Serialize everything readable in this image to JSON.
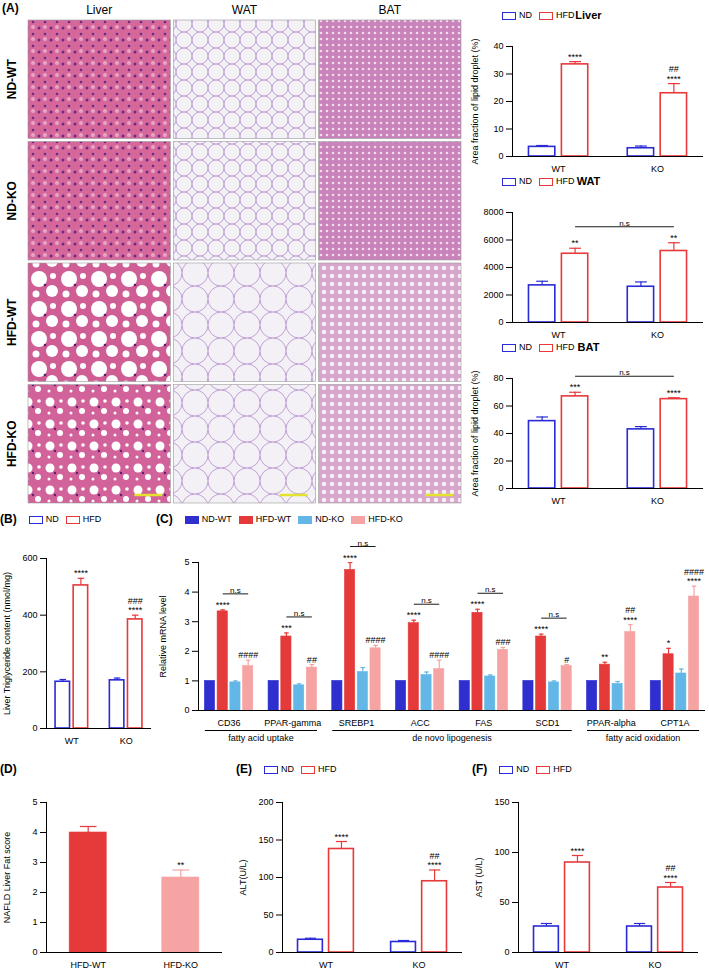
{
  "image_grid": {
    "panel": "(A)",
    "columns": [
      "Liver",
      "WAT",
      "BAT"
    ],
    "rows": [
      "ND-WT",
      "ND-KO",
      "HFD-WT",
      "HFD-KO"
    ]
  },
  "chart_data": [
    {
      "type": "bar",
      "title": "Liver",
      "ylabel": "Area fraction of lipid droplet (%)",
      "categories": [
        "WT",
        "KO"
      ],
      "ylim": [
        0,
        40
      ],
      "yticks": [
        0,
        10,
        20,
        30,
        40
      ],
      "legend": "top-left",
      "series": [
        {
          "name": "ND",
          "color": "#2a2ad6",
          "values": [
            3.5,
            3.0
          ],
          "errors": [
            0.5,
            0.8
          ],
          "annotations": [
            [],
            []
          ]
        },
        {
          "name": "HFD",
          "color": "#e8383a",
          "values": [
            33.5,
            23.0
          ],
          "errors": [
            1.0,
            3.5
          ],
          "annotations": [
            [
              "****"
            ],
            [
              "##",
              "****"
            ]
          ]
        }
      ]
    },
    {
      "type": "bar",
      "title": "WAT",
      "categories": [
        "WT",
        "KO"
      ],
      "ylim": [
        0,
        8000
      ],
      "yticks": [
        0,
        2000,
        4000,
        6000,
        8000
      ],
      "legend": "top-left",
      "series": [
        {
          "name": "ND",
          "color": "#2a2ad6",
          "values": [
            2700,
            2600
          ],
          "errors": [
            300,
            350
          ],
          "annotations": [
            [],
            []
          ]
        },
        {
          "name": "HFD",
          "color": "#e8383a",
          "values": [
            5000,
            5200
          ],
          "errors": [
            400,
            600
          ],
          "annotations": [
            [
              "**"
            ],
            [
              "**"
            ]
          ]
        }
      ],
      "brackets": [
        {
          "label": "n.s",
          "from": {
            "category": "WT",
            "series": "HFD"
          },
          "to": {
            "category": "KO",
            "series": "HFD"
          }
        }
      ]
    },
    {
      "type": "bar",
      "title": "BAT",
      "ylabel": "Area fraction of lipid droplet (%)",
      "categories": [
        "WT",
        "KO"
      ],
      "ylim": [
        0,
        80
      ],
      "yticks": [
        0,
        20,
        40,
        60,
        80
      ],
      "legend": "top-left",
      "series": [
        {
          "name": "ND",
          "color": "#2a2ad6",
          "values": [
            49,
            43
          ],
          "errors": [
            3,
            2
          ],
          "annotations": [
            [],
            []
          ]
        },
        {
          "name": "HFD",
          "color": "#e8383a",
          "values": [
            67,
            65
          ],
          "errors": [
            3,
            1
          ],
          "annotations": [
            [
              "***"
            ],
            [
              "****"
            ]
          ]
        }
      ],
      "brackets": [
        {
          "label": "n.s",
          "from": {
            "category": "WT",
            "series": "HFD"
          },
          "to": {
            "category": "KO",
            "series": "HFD"
          }
        }
      ]
    },
    {
      "type": "bar",
      "panel": "(B)",
      "ylabel": "Liver Triglyceride content (nmol/mg)",
      "categories": [
        "WT",
        "KO"
      ],
      "ylim": [
        0,
        600
      ],
      "yticks": [
        0,
        200,
        400,
        600
      ],
      "legend": "top-left",
      "series": [
        {
          "name": "ND",
          "color": "#2a2ad6",
          "values": [
            165,
            170
          ],
          "errors": [
            8,
            8
          ],
          "annotations": [
            [],
            []
          ]
        },
        {
          "name": "HFD",
          "color": "#e8383a",
          "values": [
            505,
            385
          ],
          "errors": [
            25,
            15
          ],
          "annotations": [
            [
              "****"
            ],
            [
              "###",
              "****"
            ]
          ]
        }
      ]
    },
    {
      "type": "bar",
      "panel": "(C)",
      "ylabel": "Relative mRNA level",
      "categories": [
        "CD36",
        "PPAR-gamma",
        "SREBP1",
        "ACC",
        "FAS",
        "SCD1",
        "PPAR-alpha",
        "CPT1A"
      ],
      "ylim": [
        0,
        5
      ],
      "yticks": [
        0,
        1,
        2,
        3,
        4,
        5
      ],
      "legend": "top",
      "series": [
        {
          "name": "ND-WT",
          "color": "#2f2fd0",
          "values": [
            1,
            1,
            1,
            1,
            1,
            1,
            1,
            1
          ],
          "errors": [
            0,
            0,
            0,
            0,
            0,
            0,
            0,
            0
          ],
          "annotations": [
            [],
            [],
            [],
            [],
            [],
            [],
            [],
            []
          ]
        },
        {
          "name": "HFD-WT",
          "color": "#e53a3a",
          "values": [
            3.35,
            2.5,
            4.75,
            2.95,
            3.3,
            2.5,
            1.55,
            1.9
          ],
          "errors": [
            0.05,
            0.12,
            0.25,
            0.1,
            0.12,
            0.08,
            0.08,
            0.2
          ],
          "annotations": [
            [
              "****"
            ],
            [
              "***"
            ],
            [
              "****"
            ],
            [
              "****"
            ],
            [
              "****"
            ],
            [
              "****"
            ],
            [
              "**"
            ],
            [
              "*"
            ]
          ]
        },
        {
          "name": "ND-KO",
          "color": "#63b7e6",
          "values": [
            0.95,
            0.85,
            1.3,
            1.2,
            1.15,
            0.95,
            0.9,
            1.25
          ],
          "errors": [
            0.05,
            0.05,
            0.15,
            0.1,
            0.05,
            0.05,
            0.08,
            0.15
          ],
          "annotations": [
            [],
            [],
            [],
            [],
            [],
            [],
            [],
            []
          ]
        },
        {
          "name": "HFD-KO",
          "color": "#f5a3a3",
          "values": [
            1.5,
            1.45,
            2.1,
            1.4,
            2.05,
            1.5,
            2.65,
            3.85
          ],
          "errors": [
            0.2,
            0.1,
            0.1,
            0.3,
            0.08,
            0.05,
            0.25,
            0.35
          ],
          "annotations": [
            [
              "####"
            ],
            [
              "##"
            ],
            [
              "####"
            ],
            [
              "####"
            ],
            [
              "###"
            ],
            [
              "#"
            ],
            [
              "##",
              "****"
            ],
            [
              "####",
              "****"
            ]
          ]
        }
      ],
      "brackets": [
        {
          "label": "n.s",
          "from": {
            "category": "CD36",
            "series": "HFD-WT"
          },
          "to": {
            "category": "CD36",
            "series": "HFD-KO"
          }
        },
        {
          "label": "n.s",
          "from": {
            "category": "PPAR-gamma",
            "series": "HFD-WT"
          },
          "to": {
            "category": "PPAR-gamma",
            "series": "HFD-KO"
          }
        },
        {
          "label": "n.s",
          "from": {
            "category": "SREBP1",
            "series": "HFD-WT"
          },
          "to": {
            "category": "SREBP1",
            "series": "HFD-KO"
          }
        },
        {
          "label": "n.s",
          "from": {
            "category": "ACC",
            "series": "HFD-WT"
          },
          "to": {
            "category": "ACC",
            "series": "HFD-KO"
          }
        },
        {
          "label": "n.s",
          "from": {
            "category": "FAS",
            "series": "HFD-WT"
          },
          "to": {
            "category": "FAS",
            "series": "HFD-KO"
          }
        },
        {
          "label": "n.s",
          "from": {
            "category": "SCD1",
            "series": "HFD-WT"
          },
          "to": {
            "category": "SCD1",
            "series": "HFD-KO"
          }
        }
      ],
      "groups": [
        {
          "label": "fatty acid uptake",
          "categories": [
            "CD36",
            "PPAR-gamma"
          ]
        },
        {
          "label": "de novo lipogenesis",
          "categories": [
            "SREBP1",
            "ACC",
            "FAS",
            "SCD1"
          ]
        },
        {
          "label": "fatty acid oxidation",
          "categories": [
            "PPAR-alpha",
            "CPT1A"
          ]
        }
      ]
    },
    {
      "type": "bar",
      "panel": "(D)",
      "ylabel": "NAFLD Liver Fat score",
      "categories": [
        "HFD-WT",
        "HFD-KO"
      ],
      "values": [
        4.0,
        2.5
      ],
      "errors": [
        0.2,
        0.25
      ],
      "colors": [
        "#e53a3a",
        "#f5a3a3"
      ],
      "annotations": [
        [],
        [
          "**"
        ]
      ],
      "ylim": [
        0,
        5
      ],
      "yticks": [
        0,
        1,
        2,
        3,
        4,
        5
      ]
    },
    {
      "type": "bar",
      "panel": "(E)",
      "ylabel": "ALT(U/L)",
      "categories": [
        "WT",
        "KO"
      ],
      "ylim": [
        0,
        200
      ],
      "yticks": [
        0,
        50,
        100,
        150,
        200
      ],
      "legend": "top-left",
      "series": [
        {
          "name": "ND",
          "color": "#2a2ad6",
          "values": [
            17,
            14
          ],
          "errors": [
            2,
            2
          ],
          "annotations": [
            [],
            []
          ]
        },
        {
          "name": "HFD",
          "color": "#e8383a",
          "values": [
            138,
            95
          ],
          "errors": [
            10,
            15
          ],
          "annotations": [
            [
              "****"
            ],
            [
              "##",
              "****"
            ]
          ]
        }
      ]
    },
    {
      "type": "bar",
      "panel": "(F)",
      "ylabel": "AST (U/L)",
      "categories": [
        "WT",
        "KO"
      ],
      "ylim": [
        0,
        150
      ],
      "yticks": [
        0,
        50,
        100,
        150
      ],
      "legend": "top-left",
      "series": [
        {
          "name": "ND",
          "color": "#2a2ad6",
          "values": [
            26,
            26
          ],
          "errors": [
            3,
            3
          ],
          "annotations": [
            [],
            []
          ]
        },
        {
          "name": "HFD",
          "color": "#e8383a",
          "values": [
            90,
            65
          ],
          "errors": [
            7,
            5
          ],
          "annotations": [
            [
              "****"
            ],
            [
              "##",
              "****"
            ]
          ]
        }
      ]
    }
  ]
}
